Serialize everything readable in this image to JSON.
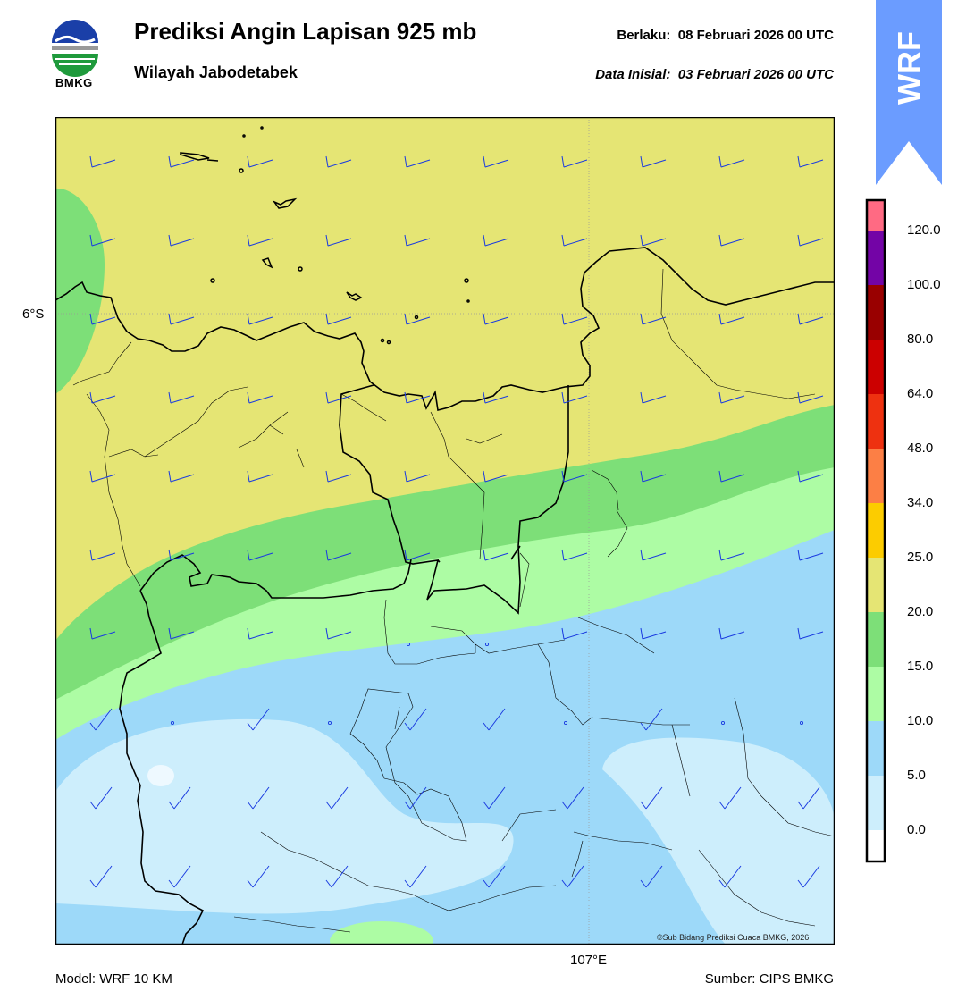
{
  "header": {
    "title": "Prediksi Angin Lapisan 925 mb",
    "subtitle": "Wilayah Jabodetabek",
    "valid_label": "Berlaku:",
    "valid_time": "08 Februari 2026 00 UTC",
    "init_label": "Data Inisial:",
    "init_time": "03 Februari 2026 00 UTC"
  },
  "logo": {
    "text": "BMKG",
    "icon": "bmkg-logo-icon"
  },
  "badge": {
    "text": "WRF"
  },
  "map": {
    "lat_label": "6°S",
    "lon_label": "107°E",
    "copyright": "©Sub Bidang Prediksi Cuaca BMKG, 2026",
    "wind_barb_icon": "wind-barb-icon",
    "calm_icon": "calm-circle-icon"
  },
  "colorbar": {
    "unit_hint": "",
    "levels": [
      {
        "label": "0.0",
        "color": "#ffffff"
      },
      {
        "label": "5.0",
        "color": "#cdeefc"
      },
      {
        "label": "10.0",
        "color": "#9dd9f9"
      },
      {
        "label": "15.0",
        "color": "#adfca4"
      },
      {
        "label": "20.0",
        "color": "#7ddf78"
      },
      {
        "label": "25.0",
        "color": "#e5e574"
      },
      {
        "label": "34.0",
        "color": "#fccc00"
      },
      {
        "label": "48.0",
        "color": "#fc7f45"
      },
      {
        "label": "64.0",
        "color": "#ee3110"
      },
      {
        "label": "80.0",
        "color": "#cc0000"
      },
      {
        "label": "100.0",
        "color": "#990000"
      },
      {
        "label": "120.0",
        "color": "#7304a6"
      }
    ],
    "top_color": "#ff6a83"
  },
  "footer": {
    "model": "Model: WRF 10 KM",
    "source": "Sumber: CIPS BMKG"
  }
}
